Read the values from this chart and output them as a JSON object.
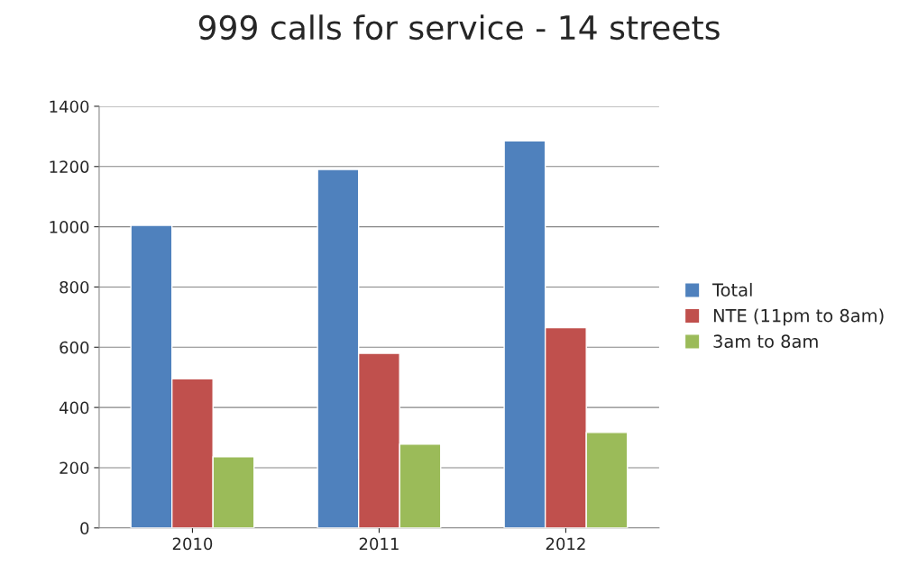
{
  "chart_data": {
    "type": "bar",
    "title": "999 calls for service - 14 streets",
    "categories": [
      "2010",
      "2011",
      "2012"
    ],
    "series": [
      {
        "name": "Total",
        "color": "#4f81bd",
        "values": [
          1005,
          1190,
          1285
        ]
      },
      {
        "name": "NTE (11pm to 8am)",
        "color": "#c0504d",
        "values": [
          495,
          580,
          665
        ]
      },
      {
        "name": "3am to 8am",
        "color": "#9bbb59",
        "values": [
          236,
          278,
          317
        ]
      }
    ],
    "ylim": [
      0,
      1400
    ],
    "yticks": [
      0,
      200,
      400,
      600,
      800,
      1000,
      1200,
      1400
    ],
    "grid": "y",
    "legend": "right"
  }
}
